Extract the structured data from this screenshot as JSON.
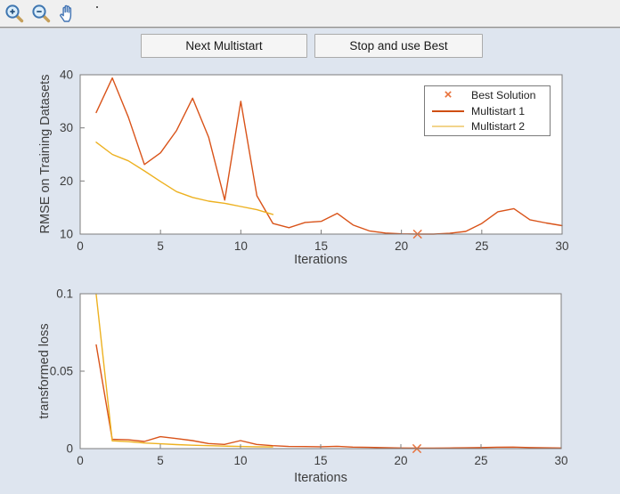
{
  "toolbar": {
    "icons": [
      {
        "name": "zoom-in"
      },
      {
        "name": "zoom-out"
      },
      {
        "name": "pan"
      }
    ]
  },
  "buttons": {
    "next_multistart": "Next Multistart",
    "stop_and_use_best": "Stop and use Best"
  },
  "colors": {
    "figure_bg": "#dee5ef",
    "toolbar_bg": "#f0f0f0",
    "plot_bg": "#ffffff",
    "axis": "#7d7d7d",
    "tick_text": "#3d3d3d",
    "best_solution": "#e8713a",
    "multistart1": "#d95319",
    "multistart2": "#edb120"
  },
  "legend": {
    "items": [
      {
        "label": "Best Solution",
        "marker": "x",
        "color": "#e8713a"
      },
      {
        "label": "Multistart 1",
        "marker": "line",
        "color": "#cf4e13"
      },
      {
        "label": "Multistart 2",
        "marker": "line",
        "color": "#f2d48c"
      }
    ]
  },
  "chart_data": [
    {
      "type": "line",
      "title": "",
      "xlabel": "Iterations",
      "ylabel": "RMSE on Training Datasets",
      "xlim": [
        0,
        30
      ],
      "ylim": [
        10,
        40
      ],
      "xticks": [
        0,
        5,
        10,
        15,
        20,
        25,
        30
      ],
      "xtick_labels": [
        "0",
        "5",
        "10",
        "15",
        "20",
        "25",
        "30"
      ],
      "yticks": [
        10,
        20,
        30,
        40
      ],
      "ytick_labels": [
        "10",
        "20",
        "30",
        "40"
      ],
      "grid": false,
      "legend_position": "upper right",
      "series": [
        {
          "name": "Multistart 1",
          "color": "#d95319",
          "x": [
            1,
            2,
            3,
            4,
            5,
            6,
            7,
            8,
            9,
            10,
            11,
            12,
            13,
            14,
            15,
            16,
            17,
            18,
            19,
            20,
            21,
            22,
            23,
            24,
            25,
            26,
            27,
            28,
            29,
            30
          ],
          "y": [
            32.9,
            39.4,
            32.0,
            23.1,
            25.3,
            29.5,
            35.6,
            28.2,
            16.4,
            35.0,
            17.2,
            12.0,
            11.2,
            12.2,
            12.4,
            13.9,
            11.7,
            10.6,
            10.2,
            10.05,
            10.0,
            10.0,
            10.15,
            10.5,
            12.0,
            14.2,
            14.8,
            12.7,
            12.1,
            11.6
          ]
        },
        {
          "name": "Multistart 2",
          "color": "#edb120",
          "x": [
            1,
            2,
            3,
            4,
            5,
            6,
            7,
            8,
            9,
            10,
            11,
            12
          ],
          "y": [
            27.3,
            25.0,
            23.8,
            21.9,
            19.9,
            18.0,
            16.9,
            16.2,
            15.8,
            15.2,
            14.6,
            13.7
          ]
        }
      ],
      "markers": [
        {
          "name": "Best Solution",
          "x": 21,
          "y": 10,
          "shape": "x",
          "color": "#e8713a"
        }
      ]
    },
    {
      "type": "line",
      "title": "",
      "xlabel": "Iterations",
      "ylabel": "transformed loss",
      "xlim": [
        0,
        30
      ],
      "ylim": [
        0,
        0.1
      ],
      "xticks": [
        0,
        5,
        10,
        15,
        20,
        25,
        30
      ],
      "xtick_labels": [
        "0",
        "5",
        "10",
        "15",
        "20",
        "25",
        "30"
      ],
      "yticks": [
        0,
        0.05,
        0.1
      ],
      "ytick_labels": [
        "0",
        "0.05",
        "0.1"
      ],
      "grid": false,
      "legend_position": "none",
      "series": [
        {
          "name": "Multistart 1",
          "color": "#d95319",
          "x": [
            1,
            2,
            3,
            4,
            5,
            6,
            7,
            8,
            9,
            10,
            11,
            12,
            13,
            14,
            15,
            16,
            17,
            18,
            19,
            20,
            21,
            22,
            23,
            24,
            25,
            26,
            27,
            28,
            29,
            30
          ],
          "y": [
            0.067,
            0.006,
            0.0057,
            0.0046,
            0.0077,
            0.0065,
            0.0052,
            0.0033,
            0.0027,
            0.0052,
            0.0027,
            0.0019,
            0.0014,
            0.0013,
            0.0012,
            0.0015,
            0.001,
            0.0008,
            0.0006,
            0.0004,
            0.0003,
            0.0003,
            0.0004,
            0.0005,
            0.0007,
            0.0009,
            0.001,
            0.0007,
            0.0005,
            0.0004
          ]
        },
        {
          "name": "Multistart 2",
          "color": "#edb120",
          "x": [
            1,
            2,
            3,
            4,
            5,
            6,
            7,
            8,
            9,
            10,
            11,
            12
          ],
          "y": [
            0.0995,
            0.005,
            0.0045,
            0.0036,
            0.0031,
            0.0026,
            0.0022,
            0.0019,
            0.0016,
            0.0014,
            0.0012,
            0.0011
          ]
        }
      ],
      "markers": [
        {
          "name": "Best Solution",
          "x": 21,
          "y": 0,
          "shape": "x",
          "color": "#e8713a"
        }
      ]
    }
  ]
}
